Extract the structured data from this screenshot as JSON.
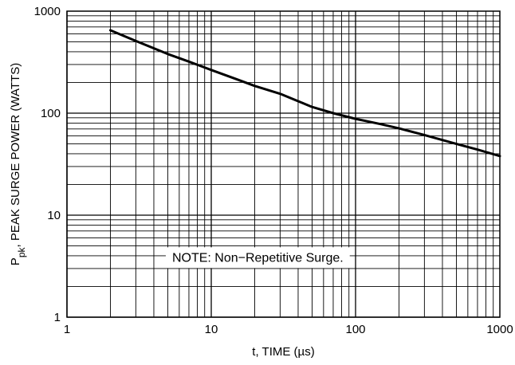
{
  "chart_data": {
    "type": "line",
    "xscale": "log",
    "yscale": "log",
    "xlim": [
      1,
      1000
    ],
    "ylim": [
      1,
      1000
    ],
    "grid": true,
    "xlabel": {
      "pre": "t, TIME (",
      "mu": "µ",
      "post": "s)"
    },
    "ylabel": {
      "main": "P",
      "sub": "pk",
      "rest": ", PEAK SURGE POWER (WATTS)"
    },
    "x_ticks": [
      {
        "value": 1,
        "label": "1"
      },
      {
        "value": 10,
        "label": "10"
      },
      {
        "value": 100,
        "label": "100"
      },
      {
        "value": 1000,
        "label": "1000"
      }
    ],
    "y_ticks": [
      {
        "value": 1,
        "label": "1"
      },
      {
        "value": 10,
        "label": "10"
      },
      {
        "value": 100,
        "label": "100"
      },
      {
        "value": 1000,
        "label": "1000"
      }
    ],
    "series": [
      {
        "x": [
          2,
          3,
          5,
          7,
          10,
          15,
          20,
          30,
          50,
          70,
          100,
          150,
          200,
          300,
          500,
          700,
          1000
        ],
        "y": [
          650,
          510,
          380,
          320,
          265,
          215,
          185,
          155,
          115,
          100,
          88,
          78,
          71,
          61,
          50,
          44,
          38
        ]
      }
    ],
    "annotations": [
      {
        "text": "NOTE: Non−Repetitive Surge.",
        "x": 21,
        "y": 3.9
      }
    ],
    "colors": {
      "line": "#000000",
      "grid": "#000000",
      "background": "#ffffff"
    }
  }
}
